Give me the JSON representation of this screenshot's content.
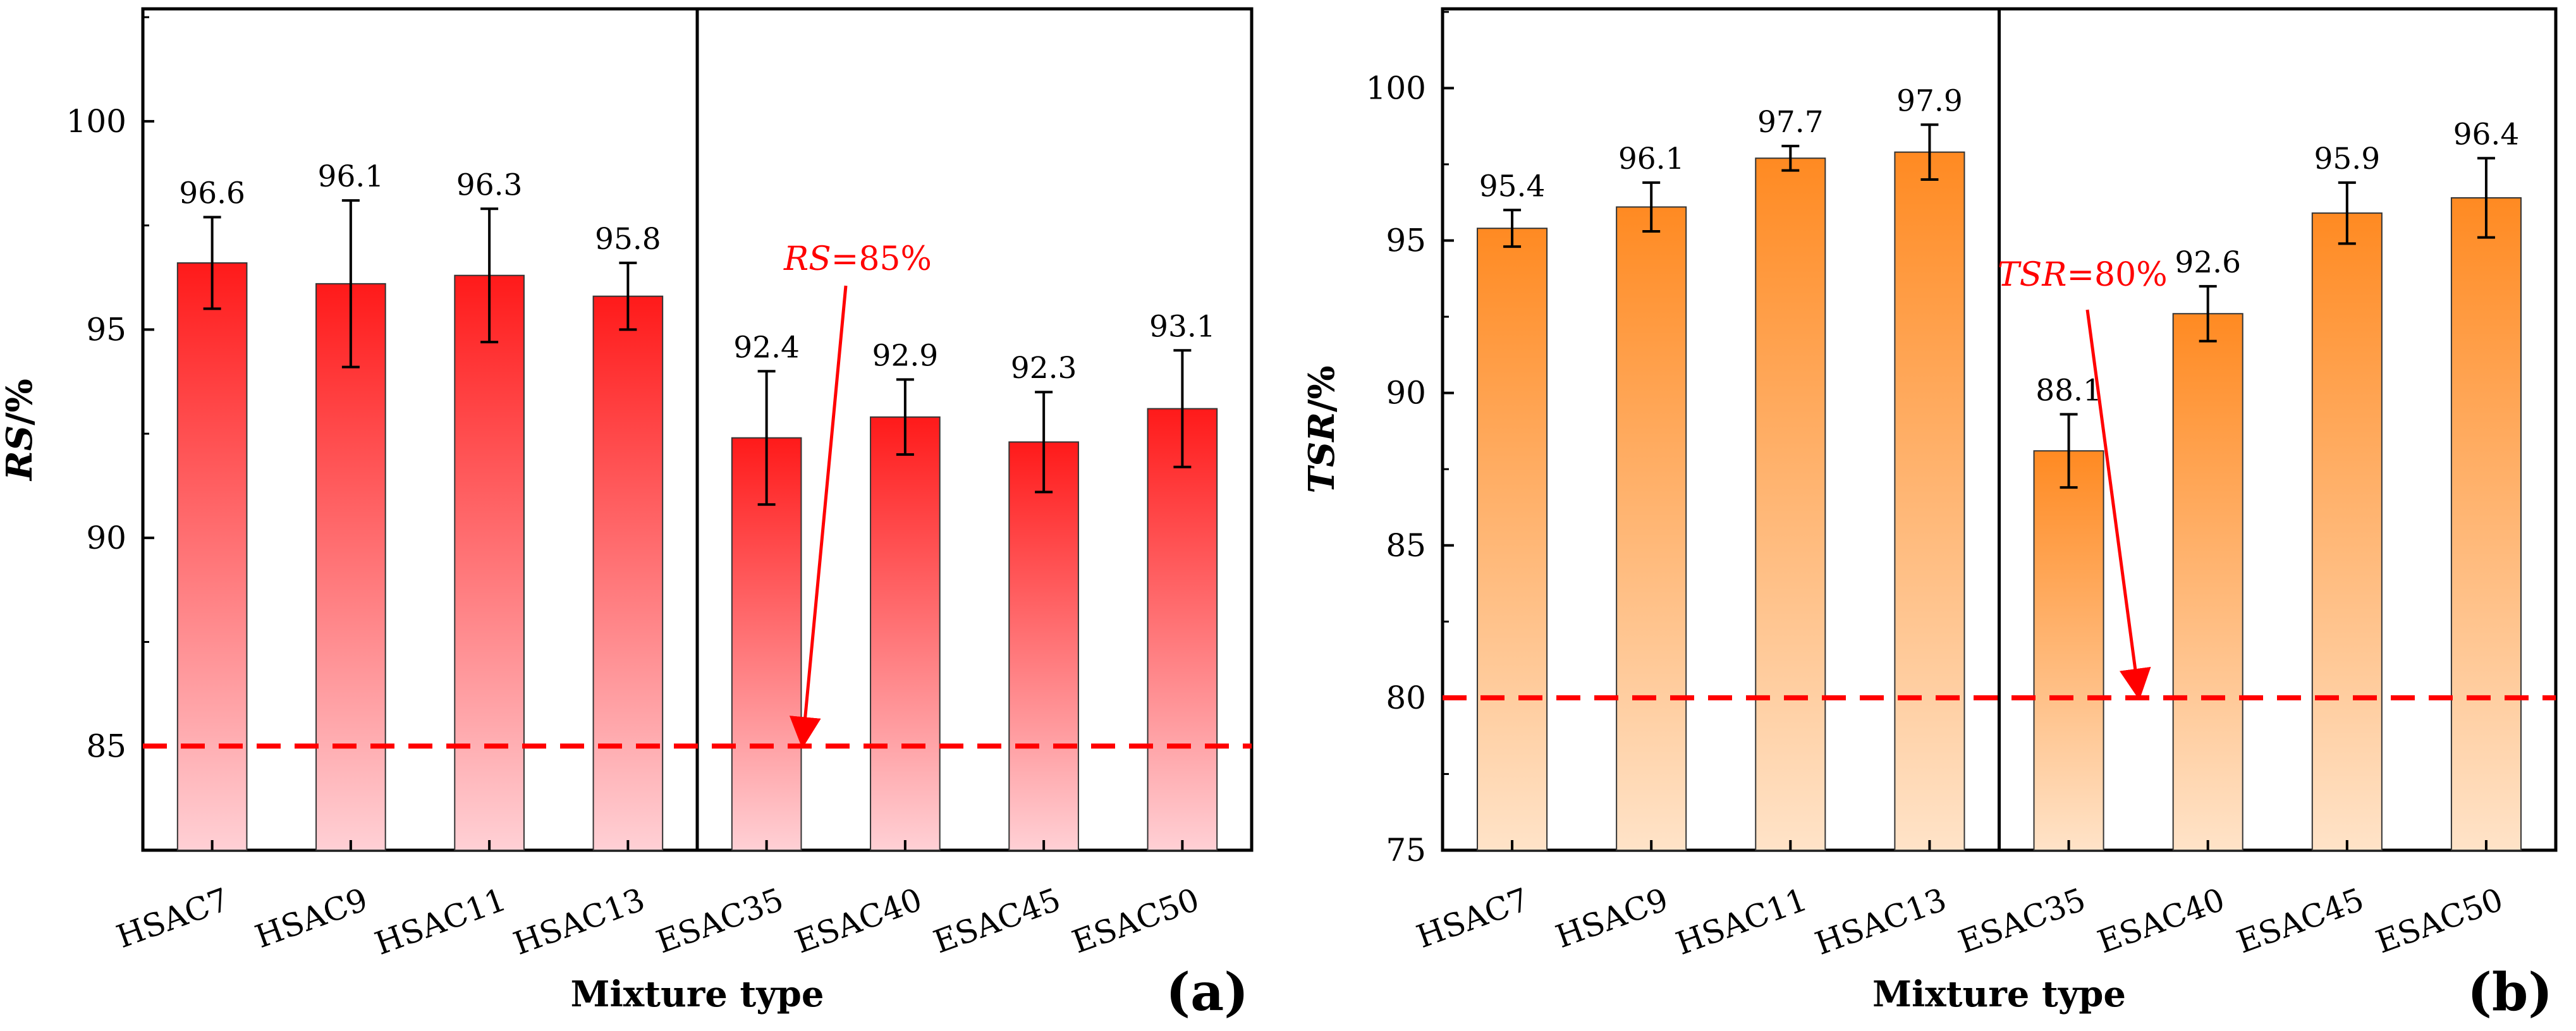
{
  "chart_data": [
    {
      "type": "bar",
      "panel_label": "(a)",
      "title": "",
      "xlabel": "Mixture type",
      "ylabel": "RS/%",
      "ylabel_italic_part": "RS",
      "ylabel_suffix": "/%",
      "ylim": [
        82.5,
        102.7
      ],
      "yticks": [
        85,
        90,
        95,
        100
      ],
      "grid": false,
      "categories": [
        "HSAC7",
        "HSAC9",
        "HSAC11",
        "HSAC13",
        "ESAC35",
        "ESAC40",
        "ESAC45",
        "ESAC50"
      ],
      "values": [
        96.6,
        96.1,
        96.3,
        95.8,
        92.4,
        92.9,
        92.3,
        93.1
      ],
      "value_labels": [
        "96.6",
        "96.1",
        "96.3",
        "95.8",
        "92.4",
        "92.9",
        "92.3",
        "93.1"
      ],
      "error_low": [
        95.5,
        94.1,
        94.7,
        95.0,
        90.8,
        92.0,
        91.1,
        91.7
      ],
      "error_high": [
        97.7,
        98.1,
        97.9,
        96.6,
        94.0,
        93.8,
        93.5,
        94.5
      ],
      "threshold": 85,
      "threshold_label_italic": "RS",
      "threshold_label_rest": "=85%",
      "group_divider_after_index": 3,
      "color_top": "#ff1a1a",
      "color_bottom": "#ffd0d5",
      "line_color": "#ff0000"
    },
    {
      "type": "bar",
      "panel_label": "(b)",
      "title": "",
      "xlabel": "Mixture type",
      "ylabel": "TSR/%",
      "ylabel_italic_part": "TSR",
      "ylabel_suffix": "/%",
      "ylim": [
        75,
        102.6
      ],
      "yticks": [
        75,
        80,
        85,
        90,
        95,
        100
      ],
      "grid": false,
      "categories": [
        "HSAC7",
        "HSAC9",
        "HSAC11",
        "HSAC13",
        "ESAC35",
        "ESAC40",
        "ESAC45",
        "ESAC50"
      ],
      "values": [
        95.4,
        96.1,
        97.7,
        97.9,
        88.1,
        92.6,
        95.9,
        96.4
      ],
      "value_labels": [
        "95.4",
        "96.1",
        "97.7",
        "97.9",
        "88.1",
        "92.6",
        "95.9",
        "96.4"
      ],
      "error_low": [
        94.8,
        95.3,
        97.3,
        97.0,
        86.9,
        91.7,
        94.9,
        95.1
      ],
      "error_high": [
        96.0,
        96.9,
        98.1,
        98.8,
        89.3,
        93.5,
        96.9,
        97.7
      ],
      "threshold": 80,
      "threshold_label_italic": "TSR",
      "threshold_label_rest": "=80%",
      "group_divider_after_index": 3,
      "color_top": "#ff8a22",
      "color_bottom": "#ffe3c8",
      "line_color": "#ff0000"
    }
  ]
}
